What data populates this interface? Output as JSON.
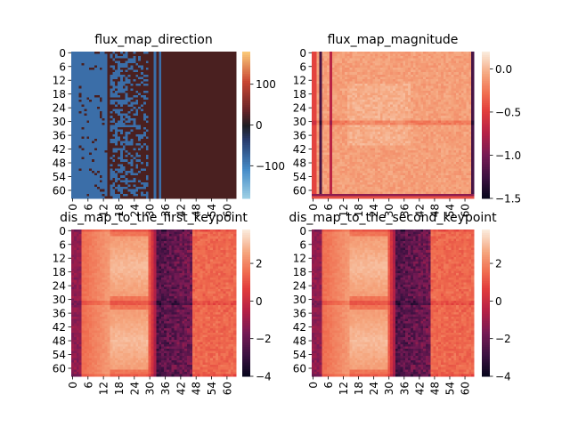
{
  "figure": {
    "background": "#ffffff"
  },
  "chart_data": [
    {
      "type": "heatmap",
      "id": "p1",
      "title": "flux_map_direction",
      "size": 64,
      "tick_labels": [
        "0",
        "6",
        "12",
        "18",
        "24",
        "30",
        "36",
        "42",
        "48",
        "54",
        "60"
      ],
      "tick_values": [
        0,
        6,
        12,
        18,
        24,
        30,
        36,
        42,
        48,
        54,
        60
      ],
      "colorbar": {
        "min": -180,
        "max": 180,
        "ticks": [
          100,
          0,
          -100
        ],
        "tick_labels": [
          "100",
          "0",
          "−100"
        ],
        "colormap": "icefire-like"
      },
      "pattern": "direction",
      "colors": {
        "low": "#3b6ea8",
        "high": "#4a2020"
      }
    },
    {
      "type": "heatmap",
      "id": "p2",
      "title": "flux_map_magnitude",
      "size": 64,
      "tick_labels": [
        "0",
        "6",
        "12",
        "18",
        "24",
        "30",
        "36",
        "42",
        "48",
        "54",
        "60"
      ],
      "tick_values": [
        0,
        6,
        12,
        18,
        24,
        30,
        36,
        42,
        48,
        54,
        60
      ],
      "colorbar": {
        "min": -1.5,
        "max": 0.2,
        "ticks": [
          0.0,
          -0.5,
          -1.0,
          -1.5
        ],
        "tick_labels": [
          "0.0",
          "−0.5",
          "−1.0",
          "−1.5"
        ],
        "colormap": "rocket"
      },
      "pattern": "magnitude"
    },
    {
      "type": "heatmap",
      "id": "p3",
      "title": "dis_map_to_the_first_keypoint",
      "size": 64,
      "tick_labels": [
        "0",
        "6",
        "12",
        "18",
        "24",
        "30",
        "36",
        "42",
        "48",
        "54",
        "60"
      ],
      "tick_values": [
        0,
        6,
        12,
        18,
        24,
        30,
        36,
        42,
        48,
        54,
        60
      ],
      "colorbar": {
        "min": -4,
        "max": 3.8,
        "ticks": [
          2,
          0,
          -2,
          -4
        ],
        "tick_labels": [
          "2",
          "0",
          "−2",
          "−4"
        ],
        "colormap": "rocket"
      },
      "pattern": "distance"
    },
    {
      "type": "heatmap",
      "id": "p4",
      "title": "dis_map_to_the_second_keypoint",
      "size": 64,
      "tick_labels": [
        "0",
        "6",
        "12",
        "18",
        "24",
        "30",
        "36",
        "42",
        "48",
        "54",
        "60"
      ],
      "tick_values": [
        0,
        6,
        12,
        18,
        24,
        30,
        36,
        42,
        48,
        54,
        60
      ],
      "colorbar": {
        "min": -4,
        "max": 3.8,
        "ticks": [
          2,
          0,
          -2,
          -4
        ],
        "tick_labels": [
          "2",
          "0",
          "−2",
          "−4"
        ],
        "colormap": "rocket"
      },
      "pattern": "distance"
    }
  ]
}
